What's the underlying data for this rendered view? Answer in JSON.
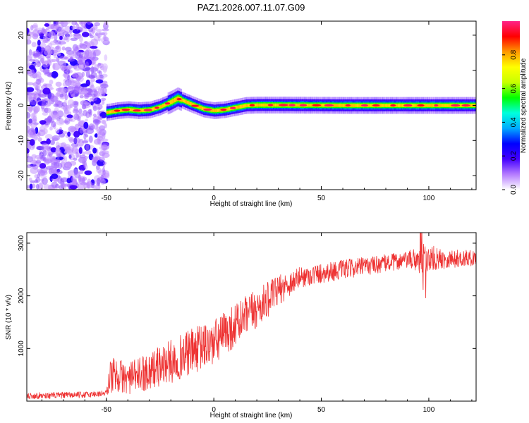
{
  "figure_title": "PAZ1.2026.007.11.07.G09",
  "chart_data": [
    {
      "type": "heatmap",
      "title": "PAZ1.2026.007.11.07.G09",
      "xlabel": "Height of straight line (km)",
      "ylabel": "Frequency (Hz)",
      "xlim": [
        -87,
        122
      ],
      "ylim": [
        -24,
        24
      ],
      "x_ticks": [
        -50,
        0,
        50,
        100
      ],
      "y_ticks": [
        -20,
        -10,
        0,
        10,
        20
      ],
      "colorbar": {
        "label": "Normalized spectral amplitude",
        "range": [
          0,
          1
        ],
        "ticks": [
          0.0,
          0.2,
          0.4,
          0.6,
          0.8
        ],
        "colors": [
          "#ffffff",
          "#b57bff",
          "#4400ff",
          "#0000ff",
          "#00aaff",
          "#00ffdd",
          "#00ff00",
          "#c8ff00",
          "#ffff00",
          "#ff9900",
          "#ff0000",
          "#ff2288"
        ]
      },
      "noise_region_x": [
        -87,
        -50
      ],
      "ridge_profile": {
        "x": [
          -50,
          -45,
          -40,
          -35,
          -30,
          -25,
          -20,
          -17,
          -15,
          -10,
          -5,
          0,
          5,
          10,
          15,
          20,
          30,
          60,
          122
        ],
        "freq": [
          -2.0,
          -1.5,
          -1.2,
          -1.5,
          -1.3,
          -0.4,
          1.0,
          2.0,
          1.5,
          0.2,
          -1.0,
          -1.5,
          -1.2,
          -0.6,
          0.0,
          0.1,
          0.1,
          0.0,
          0.0
        ]
      }
    },
    {
      "type": "line",
      "xlabel": "Height of straight line (km)",
      "ylabel": "SNR (10 * v/v)",
      "xlim": [
        -87,
        122
      ],
      "ylim": [
        0,
        3200
      ],
      "x_ticks": [
        -50,
        0,
        50,
        100
      ],
      "y_ticks": [
        1000,
        2000,
        3000
      ],
      "series": [
        {
          "name": "SNR",
          "color": "#ee3333",
          "trend": {
            "x": [
              -87,
              -60,
              -50,
              -48,
              -45,
              -40,
              -30,
              -20,
              -10,
              0,
              10,
              20,
              30,
              40,
              50,
              60,
              70,
              80,
              90,
              100,
              110,
              122
            ],
            "y": [
              100,
              120,
              150,
              500,
              500,
              420,
              580,
              750,
              950,
              1100,
              1450,
              1750,
              2100,
              2350,
              2430,
              2500,
              2560,
              2620,
              2680,
              2700,
              2700,
              2720
            ]
          },
          "noise_amplitude": {
            "x": [
              -87,
              -50,
              -48,
              -40,
              -20,
              0,
              20,
              40,
              90,
              96,
              100,
              104,
              122
            ],
            "y": [
              60,
              60,
              350,
              300,
              420,
              450,
              380,
              200,
              160,
              280,
              300,
              200,
              140
            ]
          }
        }
      ]
    }
  ]
}
